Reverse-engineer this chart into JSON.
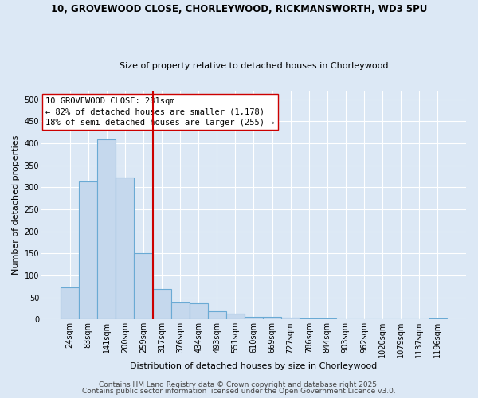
{
  "title_line1": "10, GROVEWOOD CLOSE, CHORLEYWOOD, RICKMANSWORTH, WD3 5PU",
  "title_line2": "Size of property relative to detached houses in Chorleywood",
  "xlabel": "Distribution of detached houses by size in Chorleywood",
  "ylabel": "Number of detached properties",
  "categories": [
    "24sqm",
    "83sqm",
    "141sqm",
    "200sqm",
    "259sqm",
    "317sqm",
    "376sqm",
    "434sqm",
    "493sqm",
    "551sqm",
    "610sqm",
    "669sqm",
    "727sqm",
    "786sqm",
    "844sqm",
    "903sqm",
    "962sqm",
    "1020sqm",
    "1079sqm",
    "1137sqm",
    "1196sqm"
  ],
  "values": [
    72,
    313,
    410,
    323,
    150,
    70,
    38,
    37,
    18,
    13,
    6,
    6,
    5,
    3,
    2,
    0,
    0,
    0,
    0,
    0,
    3
  ],
  "bar_color": "#c5d8ed",
  "bar_edge_color": "#6aaad4",
  "vline_x": 4.5,
  "vline_color": "#cc0000",
  "annotation_text_line1": "10 GROVEWOOD CLOSE: 281sqm",
  "annotation_text_line2": "← 82% of detached houses are smaller (1,178)",
  "annotation_text_line3": "18% of semi-detached houses are larger (255) →",
  "annotation_box_edge_color": "#cc0000",
  "annotation_box_bg": "#ffffff",
  "ylim": [
    0,
    520
  ],
  "yticks": [
    0,
    50,
    100,
    150,
    200,
    250,
    300,
    350,
    400,
    450,
    500
  ],
  "background_color": "#dce8f5",
  "grid_color": "#ffffff",
  "footer_line1": "Contains HM Land Registry data © Crown copyright and database right 2025.",
  "footer_line2": "Contains public sector information licensed under the Open Government Licence v3.0.",
  "footer_fontsize": 6.5,
  "title_fontsize1": 8.5,
  "title_fontsize2": 8.0,
  "axis_label_fontsize": 8,
  "tick_fontsize": 7,
  "annot_fontsize": 7.5
}
